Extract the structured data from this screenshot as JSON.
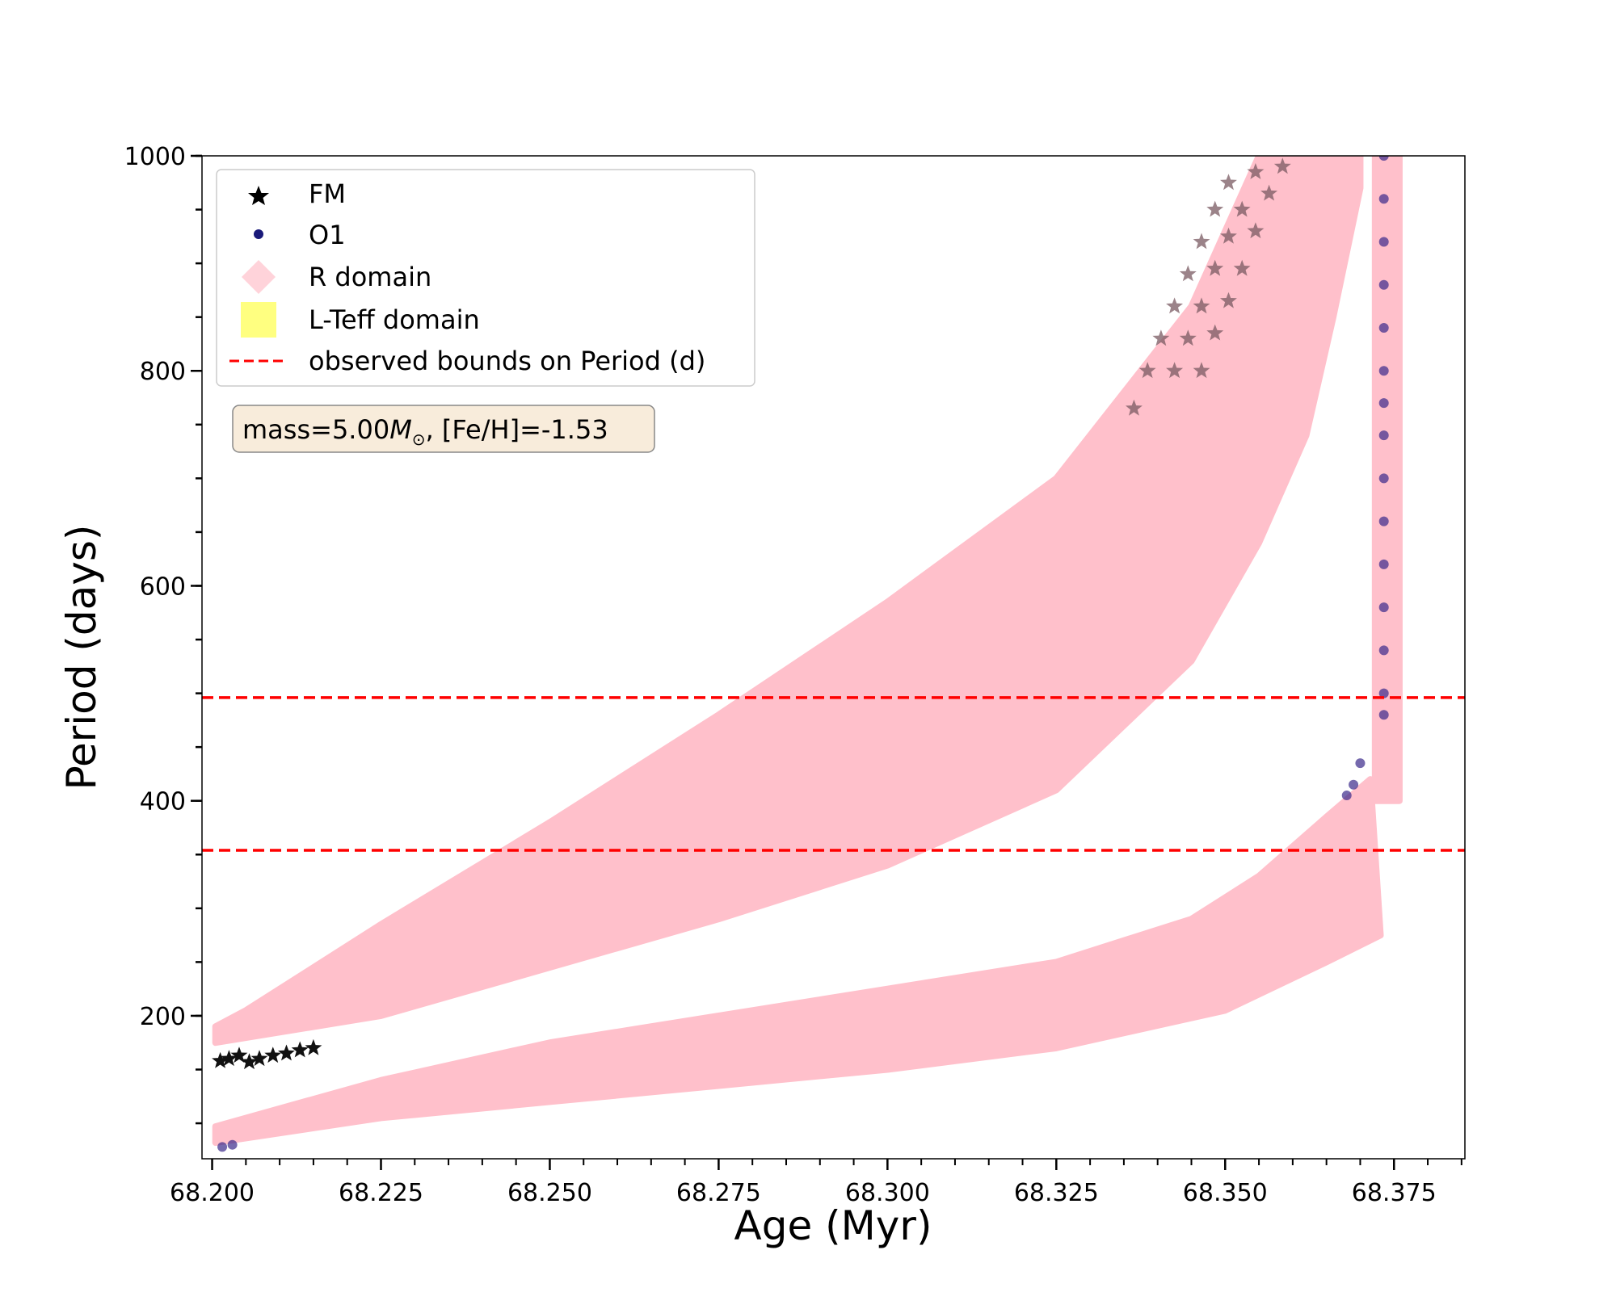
{
  "chart_data": {
    "type": "scatter",
    "xlabel": "Age (Myr)",
    "ylabel": "Period (days)",
    "xlim": [
      68.1985,
      68.3855
    ],
    "ylim": [
      67,
      1000
    ],
    "x_ticks": [
      "68.200",
      "68.225",
      "68.250",
      "68.275",
      "68.300",
      "68.325",
      "68.350",
      "68.375"
    ],
    "x_tick_values": [
      68.2,
      68.225,
      68.25,
      68.275,
      68.3,
      68.325,
      68.35,
      68.375
    ],
    "y_ticks": [
      "200",
      "400",
      "600",
      "800",
      "1000"
    ],
    "y_tick_values": [
      200,
      400,
      600,
      800,
      1000
    ],
    "y_minor_step": 50,
    "x_minor_step": 0.005,
    "grid": false,
    "legend_position": "top-left",
    "legend": [
      {
        "label": "FM",
        "marker": "star",
        "color": "#000000"
      },
      {
        "label": "O1",
        "marker": "circle",
        "color": "#1a1a7a"
      },
      {
        "label": "R domain",
        "marker": "diamond",
        "color": "#ffc0cb"
      },
      {
        "label": "L-Teff domain",
        "marker": "square",
        "color": "#ffff80"
      },
      {
        "label": "observed bounds on Period (d)",
        "marker": "dashed-line",
        "color": "#ff0000"
      }
    ],
    "annotation": {
      "prefix": "mass=5.00",
      "symbol": "M",
      "subscript": "⊙",
      "suffix": ", [Fe/H]=-1.53"
    },
    "hlines": [
      {
        "y": 496,
        "color": "#ff0000",
        "style": "dashed"
      },
      {
        "y": 354,
        "color": "#ff0000",
        "style": "dashed"
      }
    ],
    "bands": [
      {
        "name": "R domain FM",
        "color": "#ffc0cb",
        "lower": [
          [
            68.2005,
            175
          ],
          [
            68.225,
            200
          ],
          [
            68.25,
            245
          ],
          [
            68.275,
            290
          ],
          [
            68.3,
            340
          ],
          [
            68.325,
            410
          ],
          [
            68.345,
            530
          ],
          [
            68.355,
            640
          ],
          [
            68.362,
            740
          ],
          [
            68.366,
            850
          ],
          [
            68.37,
            970
          ]
        ],
        "upper": [
          [
            68.2005,
            190
          ],
          [
            68.205,
            205
          ],
          [
            68.225,
            285
          ],
          [
            68.25,
            380
          ],
          [
            68.275,
            480
          ],
          [
            68.3,
            585
          ],
          [
            68.325,
            700
          ],
          [
            68.345,
            860
          ],
          [
            68.355,
            1000
          ],
          [
            68.37,
            1000
          ]
        ]
      },
      {
        "name": "R domain O1",
        "color": "#ffc0cb",
        "lower": [
          [
            68.2005,
            82
          ],
          [
            68.225,
            105
          ],
          [
            68.25,
            120
          ],
          [
            68.275,
            135
          ],
          [
            68.3,
            150
          ],
          [
            68.325,
            170
          ],
          [
            68.35,
            205
          ],
          [
            68.365,
            250
          ],
          [
            68.373,
            275
          ]
        ],
        "upper": [
          [
            68.2005,
            97
          ],
          [
            68.225,
            140
          ],
          [
            68.25,
            175
          ],
          [
            68.275,
            200
          ],
          [
            68.3,
            225
          ],
          [
            68.325,
            250
          ],
          [
            68.345,
            290
          ],
          [
            68.355,
            330
          ],
          [
            68.365,
            385
          ],
          [
            68.3715,
            420
          ]
        ]
      },
      {
        "name": "R domain O1 column",
        "color": "#ffc0cb",
        "lower": [
          [
            68.3722,
            400
          ],
          [
            68.3758,
            400
          ]
        ],
        "upper": [
          [
            68.3722,
            1000
          ],
          [
            68.3758,
            1000
          ]
        ]
      }
    ],
    "fm_stars": [
      [
        68.2012,
        158
      ],
      [
        68.2025,
        160
      ],
      [
        68.204,
        163
      ],
      [
        68.2055,
        157
      ],
      [
        68.207,
        160
      ],
      [
        68.209,
        163
      ],
      [
        68.211,
        165
      ],
      [
        68.213,
        168
      ],
      [
        68.215,
        170
      ],
      [
        68.3365,
        765
      ],
      [
        68.3385,
        800
      ],
      [
        68.3405,
        830
      ],
      [
        68.3425,
        860
      ],
      [
        68.3445,
        890
      ],
      [
        68.3465,
        920
      ],
      [
        68.3485,
        950
      ],
      [
        68.3505,
        975
      ],
      [
        68.3425,
        800
      ],
      [
        68.3445,
        830
      ],
      [
        68.3465,
        860
      ],
      [
        68.3485,
        895
      ],
      [
        68.3505,
        925
      ],
      [
        68.3525,
        950
      ],
      [
        68.3545,
        985
      ],
      [
        68.3465,
        800
      ],
      [
        68.3485,
        835
      ],
      [
        68.3505,
        865
      ],
      [
        68.3525,
        895
      ],
      [
        68.3545,
        930
      ],
      [
        68.3565,
        965
      ],
      [
        68.3585,
        990
      ]
    ],
    "o1_dots": [
      [
        68.2015,
        78
      ],
      [
        68.203,
        80
      ],
      [
        68.3735,
        1000
      ],
      [
        68.3735,
        960
      ],
      [
        68.3735,
        920
      ],
      [
        68.3735,
        880
      ],
      [
        68.3735,
        840
      ],
      [
        68.3735,
        800
      ],
      [
        68.3735,
        770
      ],
      [
        68.3735,
        740
      ],
      [
        68.3735,
        700
      ],
      [
        68.3735,
        660
      ],
      [
        68.3735,
        620
      ],
      [
        68.3735,
        580
      ],
      [
        68.3735,
        540
      ],
      [
        68.3735,
        500
      ],
      [
        68.3735,
        480
      ],
      [
        68.37,
        435
      ],
      [
        68.369,
        415
      ],
      [
        68.368,
        405
      ]
    ]
  }
}
